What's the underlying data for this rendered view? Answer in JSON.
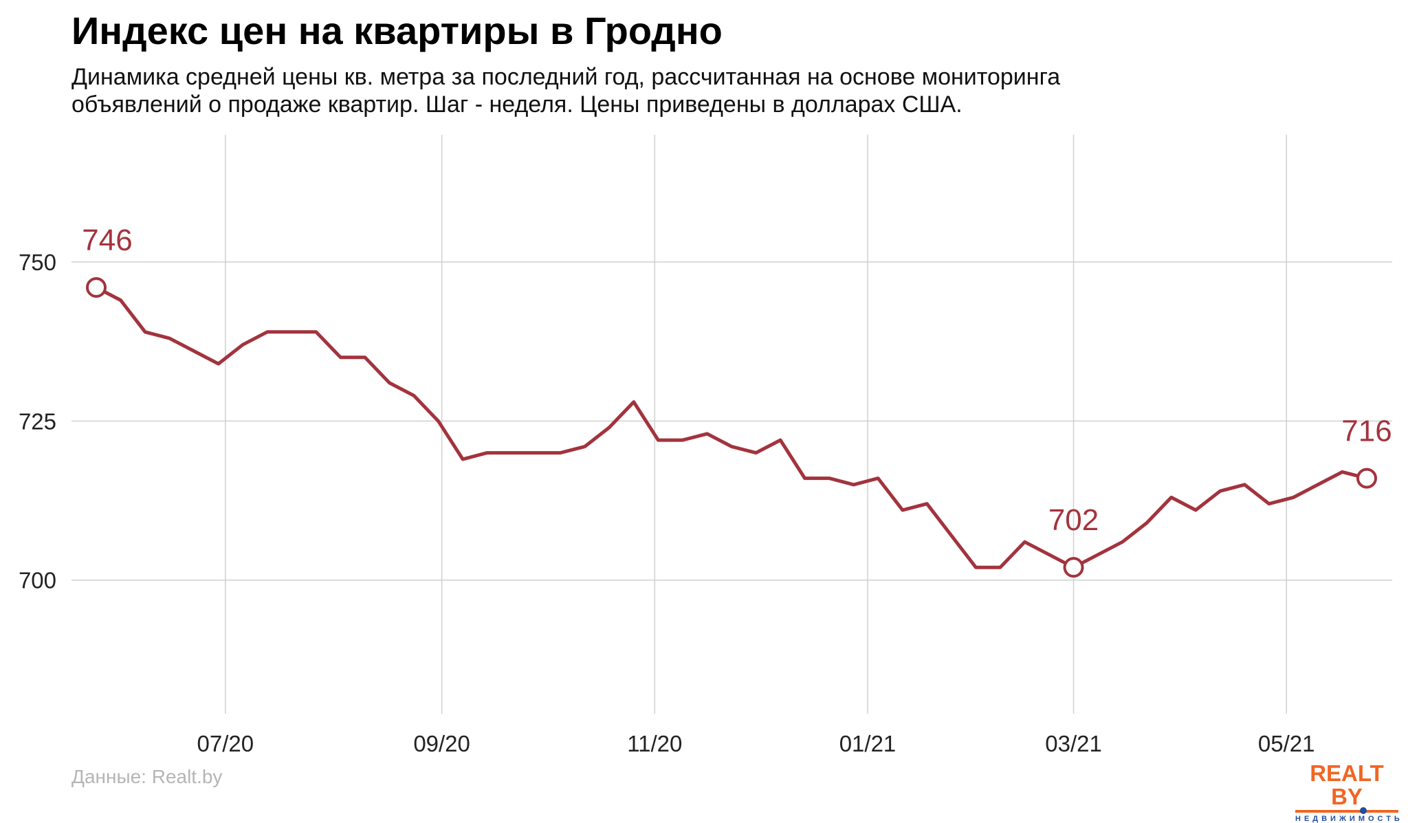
{
  "title": "Индекс цен на квартиры в Гродно",
  "subtitle_line1": "Динамика средней цены кв. метра за последний год, рассчитанная на основе мониторинга",
  "subtitle_line2": "объявлений о продаже квартир. Шаг - неделя. Цены приведены в долларах США.",
  "source": "Данные: Realt.by",
  "logo": {
    "main": "REALT BY",
    "sub": "НЕДВИЖИМОСТЬ"
  },
  "colors": {
    "line": "#a3333d",
    "grid": "#d0d0d0",
    "logo_orange": "#f26522",
    "logo_blue": "#1f4e9e"
  },
  "chart_data": {
    "type": "line",
    "title": "Индекс цен на квартиры в Гродно",
    "xlabel": "",
    "ylabel": "",
    "ylim": [
      679,
      770
    ],
    "yticks": [
      700,
      725,
      750
    ],
    "xticks": [
      {
        "date": "2020-07-01",
        "label": "07/20"
      },
      {
        "date": "2020-09-01",
        "label": "09/20"
      },
      {
        "date": "2020-11-01",
        "label": "11/20"
      },
      {
        "date": "2021-01-01",
        "label": "01/21"
      },
      {
        "date": "2021-03-01",
        "label": "03/21"
      },
      {
        "date": "2021-05-01",
        "label": "05/21"
      }
    ],
    "grid": true,
    "x": [
      "2020-05-25",
      "2020-06-01",
      "2020-06-08",
      "2020-06-15",
      "2020-06-22",
      "2020-06-29",
      "2020-07-06",
      "2020-07-13",
      "2020-07-20",
      "2020-07-27",
      "2020-08-03",
      "2020-08-10",
      "2020-08-17",
      "2020-08-24",
      "2020-08-31",
      "2020-09-07",
      "2020-09-14",
      "2020-09-21",
      "2020-09-28",
      "2020-10-05",
      "2020-10-12",
      "2020-10-19",
      "2020-10-26",
      "2020-11-02",
      "2020-11-09",
      "2020-11-16",
      "2020-11-23",
      "2020-11-30",
      "2020-12-07",
      "2020-12-14",
      "2020-12-21",
      "2020-12-28",
      "2021-01-04",
      "2021-01-11",
      "2021-01-18",
      "2021-01-25",
      "2021-02-01",
      "2021-02-08",
      "2021-02-15",
      "2021-02-22",
      "2021-03-01",
      "2021-03-08",
      "2021-03-15",
      "2021-03-22",
      "2021-03-29",
      "2021-04-05",
      "2021-04-12",
      "2021-04-19",
      "2021-04-26",
      "2021-05-03",
      "2021-05-10",
      "2021-05-17",
      "2021-05-24"
    ],
    "values": [
      746,
      744,
      739,
      738,
      736,
      734,
      737,
      739,
      739,
      739,
      735,
      735,
      731,
      729,
      725,
      719,
      720,
      720,
      720,
      720,
      721,
      724,
      728,
      722,
      722,
      723,
      721,
      720,
      722,
      716,
      716,
      715,
      716,
      711,
      712,
      707,
      702,
      702,
      706,
      704,
      702,
      704,
      706,
      709,
      713,
      711,
      714,
      715,
      712,
      713,
      715,
      717,
      716
    ],
    "annotations": [
      {
        "date": "2020-05-25",
        "value": 746,
        "label": "746"
      },
      {
        "date": "2021-03-01",
        "value": 702,
        "label": "702"
      },
      {
        "date": "2021-05-24",
        "value": 716,
        "label": "716"
      }
    ]
  }
}
